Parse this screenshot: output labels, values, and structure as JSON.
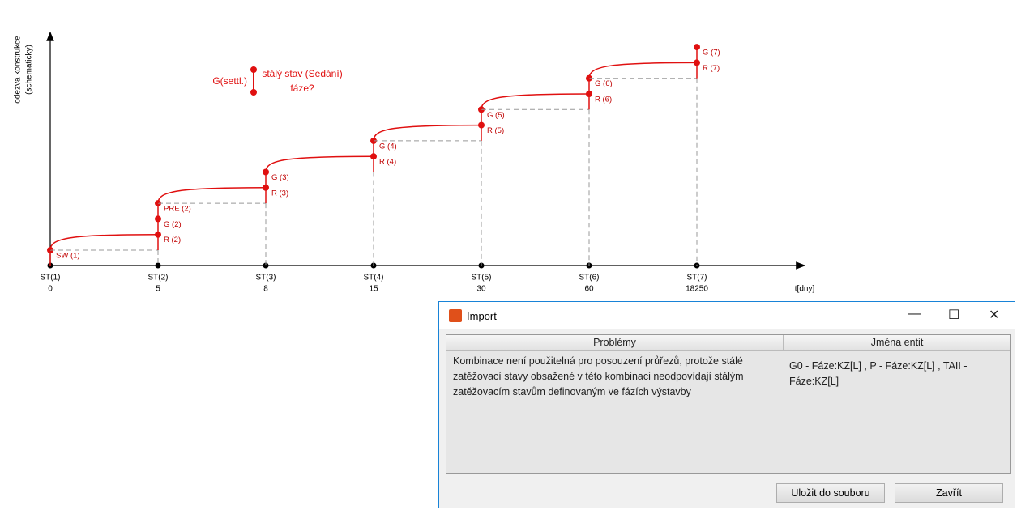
{
  "diagram": {
    "y_axis_label": [
      "odezva konstrukce",
      "(schematicky)"
    ],
    "x_axis_label": "t[dny]",
    "stages": [
      {
        "label": "ST(1)",
        "day": "0",
        "points": [
          "SW (1)"
        ]
      },
      {
        "label": "ST(2)",
        "day": "5",
        "points": [
          "R (2)",
          "G (2)",
          "PRE (2)"
        ]
      },
      {
        "label": "ST(3)",
        "day": "8",
        "points": [
          "R (3)",
          "G (3)"
        ]
      },
      {
        "label": "ST(4)",
        "day": "15",
        "points": [
          "R (4)",
          "G (4)"
        ]
      },
      {
        "label": "ST(5)",
        "day": "30",
        "points": [
          "R (5)",
          "G (5)"
        ]
      },
      {
        "label": "ST(6)",
        "day": "60",
        "points": [
          "R (6)",
          "G (6)"
        ]
      },
      {
        "label": "ST(7)",
        "day": "18250",
        "points": [
          "R (7)",
          "G (7)"
        ]
      }
    ],
    "legend": {
      "marker_label": "G(settl.)",
      "text": [
        "stálý stav (Sedání)",
        "fáze?"
      ]
    }
  },
  "dialog": {
    "title": "Import",
    "columns": [
      "Problémy",
      "Jména entit"
    ],
    "rows": [
      [
        "Kombinace není použitelná pro posouzení průřezů, protože stálé zatěžovací stavy obsažené v této kombinaci neodpovídají stálým zatěžovacím stavům definovaným ve fázích výstavby",
        "G0 - Fáze:KZ[L] , P - Fáze:KZ[L] , TAII - Fáze:KZ[L]"
      ]
    ],
    "buttons": [
      "Uložit do souboru",
      "Zavřít"
    ]
  }
}
